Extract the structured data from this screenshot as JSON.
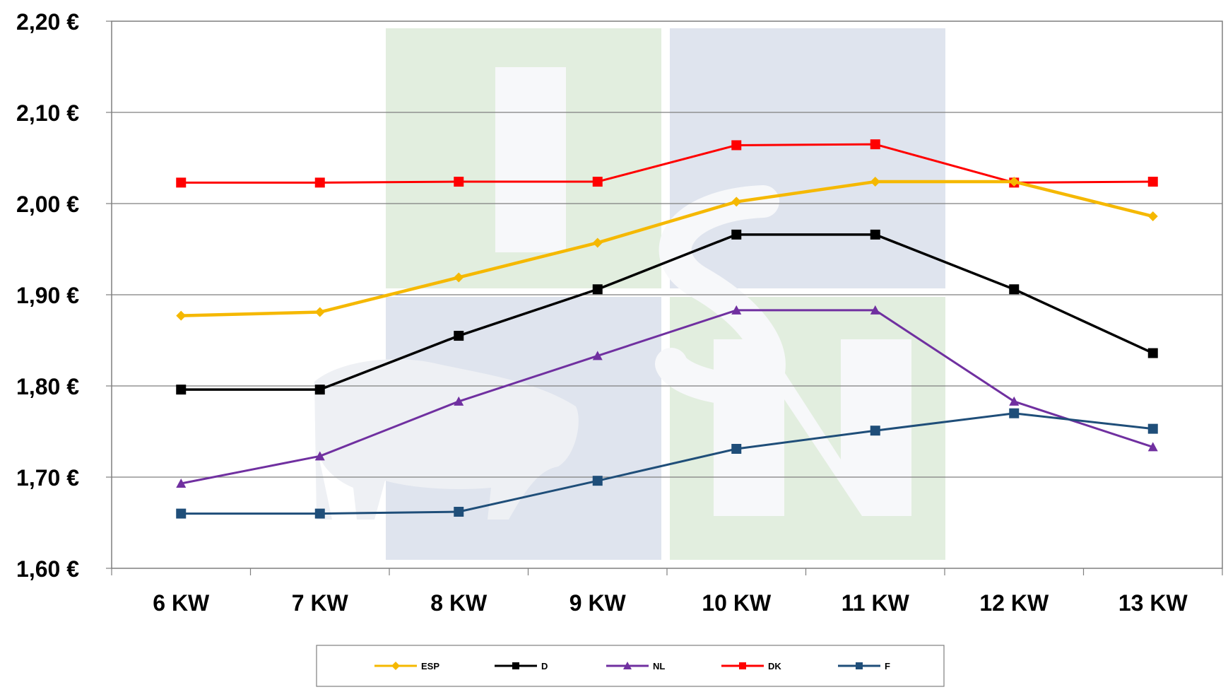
{
  "chart_data": {
    "type": "line",
    "categories": [
      "6 KW",
      "7 KW",
      "8 KW",
      "9 KW",
      "10 KW",
      "11 KW",
      "12 KW",
      "13 KW"
    ],
    "ylim": [
      1.6,
      2.2
    ],
    "yticks": [
      "1,60 €",
      "1,70 €",
      "1,80 €",
      "1,90 €",
      "2,00 €",
      "2,10 €",
      "2,20 €"
    ],
    "grid": true,
    "legend_position": "bottom",
    "series": [
      {
        "name": "ESP",
        "color": "#F5B800",
        "marker": "diamond",
        "values": [
          1.877,
          1.881,
          1.919,
          1.957,
          2.002,
          2.024,
          2.024,
          1.986
        ]
      },
      {
        "name": "D",
        "color": "#000000",
        "marker": "square",
        "values": [
          1.796,
          1.796,
          1.855,
          1.906,
          1.966,
          1.966,
          1.906,
          1.836
        ]
      },
      {
        "name": "NL",
        "color": "#7030A0",
        "marker": "triangle",
        "values": [
          1.693,
          1.723,
          1.783,
          1.833,
          1.883,
          1.883,
          1.783,
          1.733
        ]
      },
      {
        "name": "DK",
        "color": "#FF0000",
        "marker": "square",
        "values": [
          2.023,
          2.023,
          2.024,
          2.024,
          2.064,
          2.065,
          2.023,
          2.024
        ]
      },
      {
        "name": "F",
        "color": "#1F4E79",
        "marker": "square",
        "values": [
          1.66,
          1.66,
          1.662,
          1.696,
          1.731,
          1.751,
          1.77,
          1.753
        ]
      }
    ]
  }
}
